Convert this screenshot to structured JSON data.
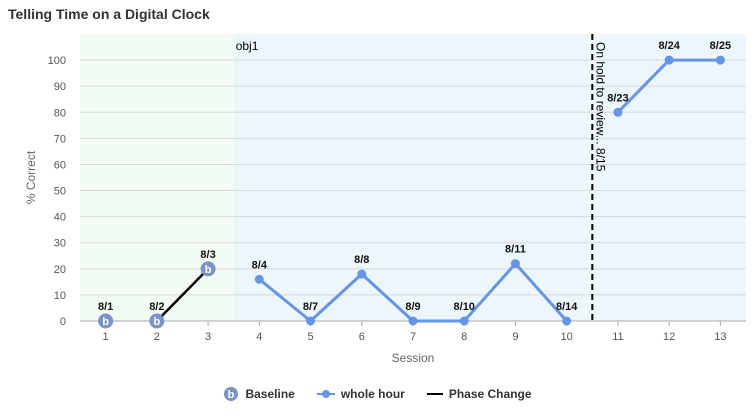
{
  "chart_data": {
    "type": "line",
    "title": "Telling Time on a Digital Clock",
    "xlabel": "Session",
    "ylabel": "% Correct",
    "xlim": [
      0.5,
      13.5
    ],
    "ylim": [
      0,
      110
    ],
    "x_ticks": [
      1,
      2,
      3,
      4,
      5,
      6,
      7,
      8,
      9,
      10,
      11,
      12,
      13
    ],
    "y_ticks": [
      0,
      10,
      20,
      30,
      40,
      50,
      60,
      70,
      80,
      90,
      100
    ],
    "grid": true,
    "legend_position": "bottom",
    "phase_bands": [
      {
        "x_start": 0.5,
        "x_end": 3.5,
        "color": "#f3fcf3",
        "label": ""
      },
      {
        "x_start": 3.5,
        "x_end": 13.5,
        "color": "#eef6fd",
        "label": "obj1"
      }
    ],
    "series": [
      {
        "name": "Baseline",
        "color": "#5b7fc0",
        "marker": "b",
        "segments": [
          [
            0,
            1,
            2
          ]
        ],
        "points": [
          {
            "x": 1,
            "y": 0,
            "label": "8/1"
          },
          {
            "x": 2,
            "y": 0,
            "label": "8/2"
          },
          {
            "x": 3,
            "y": 20,
            "label": "8/3"
          }
        ]
      },
      {
        "name": "whole hour",
        "color": "#6495e6",
        "marker": "circle",
        "segments": [
          [
            0,
            1,
            2,
            3,
            4,
            5,
            6
          ],
          [
            7,
            8,
            9
          ]
        ],
        "points": [
          {
            "x": 4,
            "y": 16,
            "label": "8/4"
          },
          {
            "x": 5,
            "y": 0,
            "label": "8/7"
          },
          {
            "x": 6,
            "y": 18,
            "label": "8/8"
          },
          {
            "x": 7,
            "y": 0,
            "label": "8/9"
          },
          {
            "x": 8,
            "y": 0,
            "label": "8/10"
          },
          {
            "x": 9,
            "y": 22,
            "label": "8/11"
          },
          {
            "x": 10,
            "y": 0,
            "label": "8/14"
          },
          {
            "x": 11,
            "y": 80,
            "label": "8/23"
          },
          {
            "x": 12,
            "y": 100,
            "label": "8/24"
          },
          {
            "x": 13,
            "y": 100,
            "label": "8/25"
          }
        ]
      }
    ],
    "connector": {
      "color": "#000000",
      "from": {
        "x": 2,
        "y": 0
      },
      "to": {
        "x": 3,
        "y": 20
      }
    },
    "phase_change": {
      "name": "Phase Change",
      "x": 10.5,
      "label": "On hold to review... 8/15",
      "color": "#000000"
    }
  }
}
